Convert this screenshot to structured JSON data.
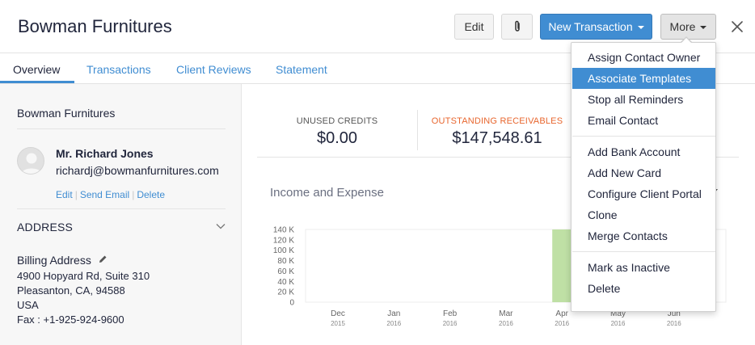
{
  "header": {
    "title": "Bowman Furnitures",
    "edit_label": "Edit",
    "new_transaction_label": "New Transaction",
    "more_label": "More"
  },
  "tabs": [
    "Overview",
    "Transactions",
    "Client Reviews",
    "Statement"
  ],
  "contact": {
    "company": "Bowman Furnitures",
    "person_name": "Mr. Richard Jones",
    "email": "richardj@bowmanfurnitures.com",
    "links": [
      "Edit",
      "Send Email",
      "Delete"
    ]
  },
  "address": {
    "heading": "ADDRESS",
    "billing_heading": "Billing Address",
    "lines": [
      "4900 Hopyard Rd, Suite 310",
      "Pleasanton, CA, 94588",
      "USA",
      "Fax : +1-925-924-9600"
    ]
  },
  "stats": {
    "unused_credits_label": "UNUSED CREDITS",
    "unused_credits_value": "$0.00",
    "outstanding_label": "OUTSTANDING RECEIVABLES",
    "outstanding_value": "$147,548.61",
    "outstanding_color": "#e8662e"
  },
  "chart_title": "Income and Expense",
  "chart_data": {
    "type": "bar",
    "categories": [
      "Dec 2015",
      "Jan 2016",
      "Feb 2016",
      "Mar 2016",
      "Apr 2016",
      "May 2016",
      "Jun 2016"
    ],
    "x_month_labels": [
      "Dec",
      "Jan",
      "Feb",
      "Mar",
      "Apr",
      "May",
      "Jun"
    ],
    "x_year_labels": [
      "2015",
      "2016",
      "2016",
      "2016",
      "2016",
      "2016",
      "2016"
    ],
    "yticks": [
      "0",
      "20 K",
      "40 K",
      "60 K",
      "80 K",
      "100 K",
      "120 K",
      "140 K"
    ],
    "ylim": [
      0,
      140000
    ],
    "series": [
      {
        "values": [
          0,
          0,
          0,
          0,
          140000,
          0,
          0
        ],
        "color": "#bfe0a5"
      }
    ]
  },
  "more_menu": {
    "items": [
      "Assign Contact Owner",
      "Associate Templates",
      "Stop all Reminders",
      "Email Contact",
      "Add Bank Account",
      "Add New Card",
      "Configure Client Portal",
      "Clone",
      "Merge Contacts",
      "Mark as Inactive",
      "Delete"
    ],
    "highlighted": "Associate Templates"
  },
  "colors": {
    "accent": "#408dd2",
    "text": "#21263c"
  }
}
